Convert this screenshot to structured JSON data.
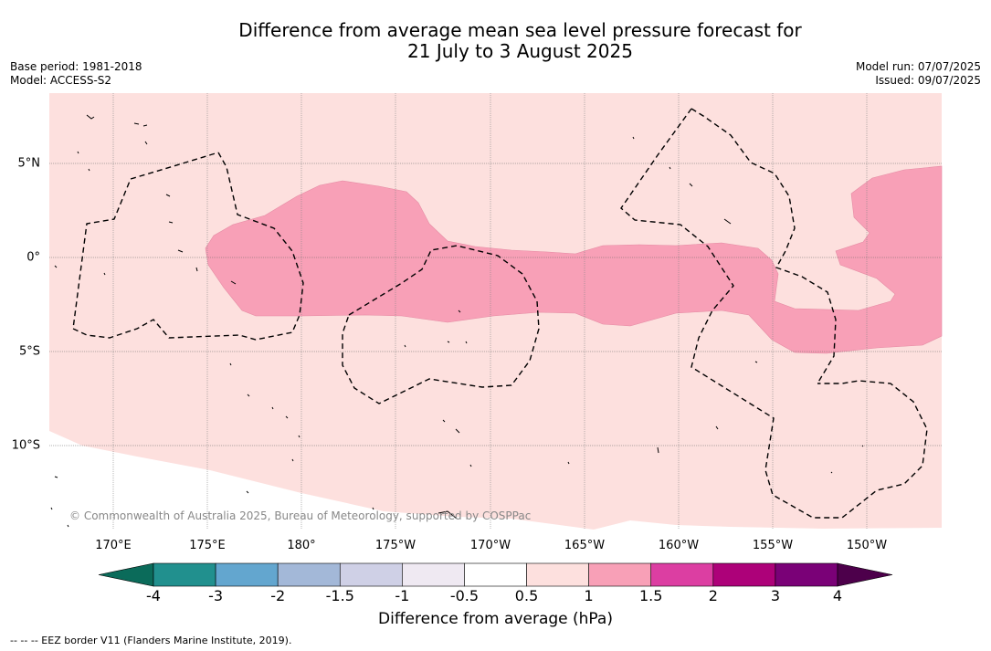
{
  "title": {
    "line1": "Difference from average mean sea level pressure forecast for",
    "line2": "21 July to 3 August 2025"
  },
  "meta": {
    "base_period": "Base period: 1981-2018",
    "model": "Model: ACCESS-S2",
    "model_run": "Model run: 07/07/2025",
    "issued": "Issued: 09/07/2025"
  },
  "map": {
    "longitude_labels": [
      "170°E",
      "175°E",
      "180°",
      "175°W",
      "170°W",
      "165°W",
      "160°W",
      "155°W",
      "150°W"
    ],
    "latitude_labels": [
      "5°N",
      "0°",
      "5°S",
      "10°S"
    ],
    "credit": "© Commonwealth of Australia 2025, Bureau of Meteorology, supported by COSPPac",
    "background_class_color": "#fde0de",
    "anomaly_class_color": "#f8a0b7",
    "eez_line_color": "#000000"
  },
  "colorbar": {
    "ticks": [
      "-4",
      "-3",
      "-2",
      "-1.5",
      "-1",
      "-0.5",
      "0.5",
      "1",
      "1.5",
      "2",
      "3",
      "4"
    ],
    "colors": [
      "#0b6b5a",
      "#21908e",
      "#63a6cf",
      "#a3b8d8",
      "#cfd0e6",
      "#efe9f2",
      "#ffffff",
      "#fde0de",
      "#f8a0b7",
      "#dc3ea2",
      "#ad0179",
      "#7a0177",
      "#4d004b"
    ],
    "label": "Difference from average (hPa)"
  },
  "footer": "-- -- -- EEZ border V11 (Flanders Marine Institute, 2019)."
}
